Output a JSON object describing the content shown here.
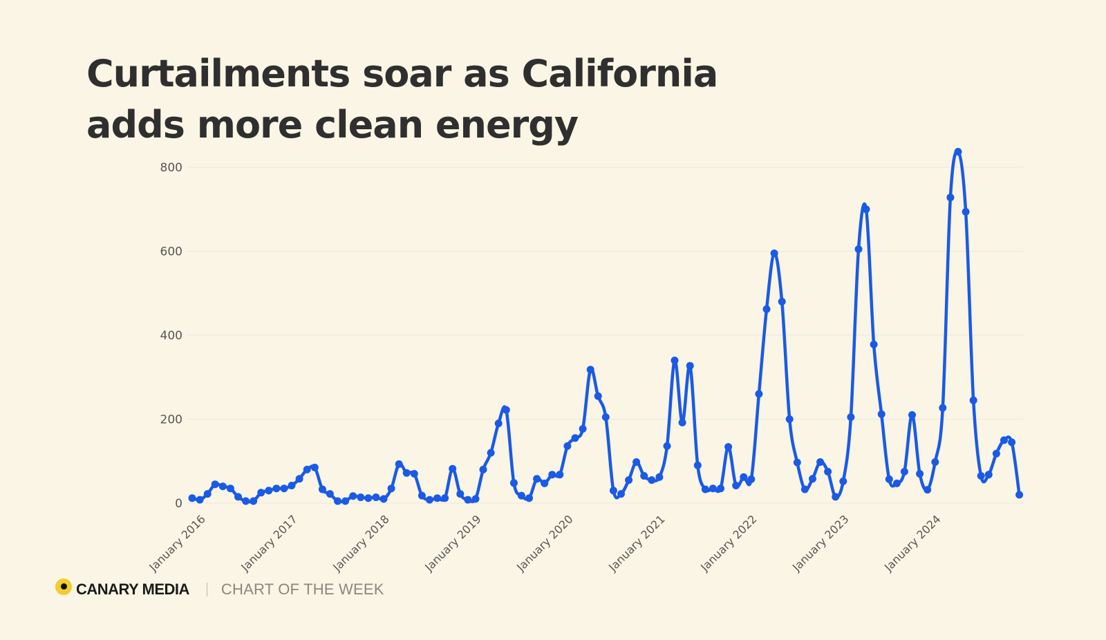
{
  "title_lines": [
    "Curtailments soar as California",
    "adds more clean energy"
  ],
  "footer": {
    "brand": "CANARY MEDIA",
    "tagline": "CHART OF THE WEEK"
  },
  "colors": {
    "background": "#faf5e4",
    "line": "#1a5ae6",
    "grid": "#ece8dc",
    "axis_text": "#555555"
  },
  "chart_data": {
    "type": "line",
    "title": "Curtailments soar as California adds more clean energy",
    "xlabel": "",
    "ylabel": "",
    "x_start": "2016-01",
    "x_step": "month",
    "ylim": [
      0,
      850
    ],
    "yticks": [
      0,
      200,
      400,
      600,
      800
    ],
    "xtick_labels": [
      "January 2016",
      "January 2017",
      "January 2018",
      "January 2019",
      "January 2020",
      "January 2021",
      "January 2022",
      "January 2023",
      "January 2024"
    ],
    "grid": true,
    "series": [
      {
        "values": [
          12,
          8,
          22,
          45,
          40,
          35,
          15,
          5,
          5,
          25,
          30,
          35,
          35,
          42,
          58,
          80,
          85,
          33,
          22,
          5,
          5,
          17,
          14,
          12,
          14,
          10,
          35,
          93,
          72,
          70,
          18,
          8,
          12,
          12,
          82,
          22,
          8,
          10,
          80,
          120,
          190,
          222,
          48,
          18,
          12,
          58,
          47,
          68,
          68,
          136,
          155,
          177,
          318,
          255,
          205,
          30,
          22,
          55,
          98,
          65,
          55,
          62,
          136,
          340,
          192,
          327,
          90,
          33,
          35,
          35,
          134,
          42,
          62,
          57,
          260,
          462,
          595,
          480,
          200,
          97,
          33,
          58,
          98,
          75,
          15,
          52,
          205,
          605,
          700,
          378,
          212,
          57,
          47,
          75,
          210,
          70,
          32,
          98,
          227,
          728,
          837,
          694,
          245,
          65,
          68,
          118,
          150,
          145,
          20
        ]
      }
    ]
  }
}
